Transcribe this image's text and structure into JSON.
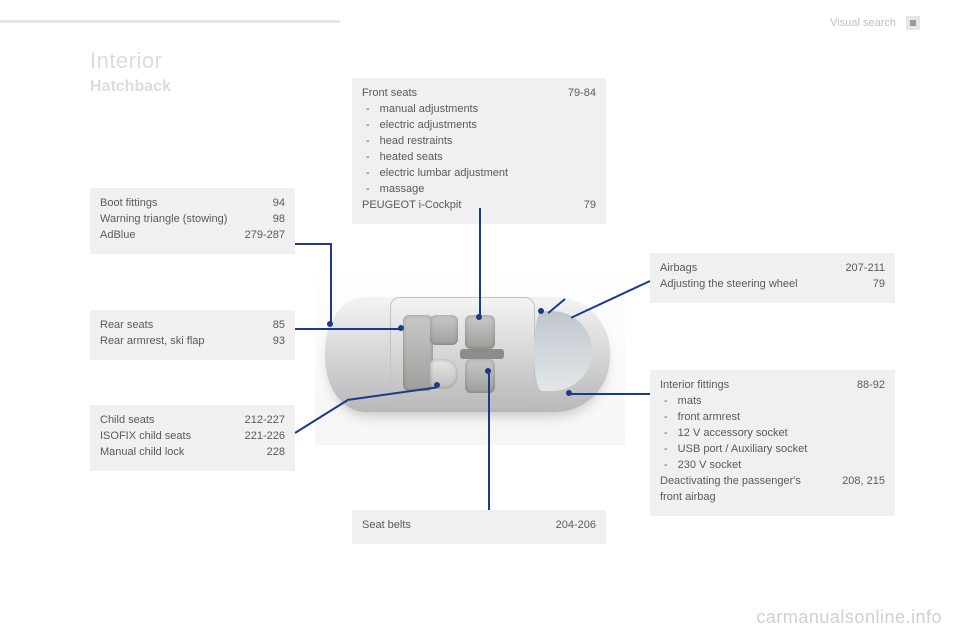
{
  "header": {
    "section_label": "Visual search"
  },
  "title": "Interior",
  "subtitle": "Hatchback",
  "footer_brand": "carmanualsonline.info",
  "colors": {
    "box_bg": "#f0f0f0",
    "text": "#5a5a5a",
    "faint_text": "#dcdcdc",
    "line": "#1a3a8a"
  },
  "boxes": {
    "front_seats": {
      "rows": [
        {
          "label": "Front seats",
          "page": "79-84"
        }
      ],
      "bullets": [
        "manual adjustments",
        "electric adjustments",
        "head restraints",
        "heated seats",
        "electric lumbar adjustment",
        "massage"
      ],
      "rows_after": [
        {
          "label": "PEUGEOT i-Cockpit",
          "page": "79"
        }
      ]
    },
    "boot": {
      "rows": [
        {
          "label": "Boot fittings",
          "page": "94"
        },
        {
          "label": "Warning triangle (stowing)",
          "page": "98",
          "indent": true
        },
        {
          "label": "AdBlue",
          "page": "279-287"
        }
      ]
    },
    "rear_seats": {
      "rows": [
        {
          "label": "Rear seats",
          "page": "85"
        },
        {
          "label": "Rear armrest, ski flap",
          "page": "93"
        }
      ]
    },
    "child": {
      "rows": [
        {
          "label": "Child seats",
          "page": "212-227"
        },
        {
          "label": "ISOFIX child seats",
          "page": "221-226"
        },
        {
          "label": "Manual child lock",
          "page": "228"
        }
      ]
    },
    "seat_belts": {
      "rows": [
        {
          "label": "Seat belts",
          "page": "204-206"
        }
      ]
    },
    "airbags": {
      "rows": [
        {
          "label": "Airbags",
          "page": "207-211"
        },
        {
          "label": "Adjusting the steering wheel",
          "page": "79"
        }
      ]
    },
    "interior_fittings": {
      "rows": [
        {
          "label": "Interior fittings",
          "page": "88-92"
        }
      ],
      "bullets": [
        "mats",
        "front armrest",
        "12 V accessory socket",
        "USB port / Auxiliary socket",
        "230 V socket"
      ],
      "rows_after": [
        {
          "label": "Deactivating the passenger's front airbag",
          "page": "208, 215",
          "indent": true
        }
      ]
    }
  }
}
